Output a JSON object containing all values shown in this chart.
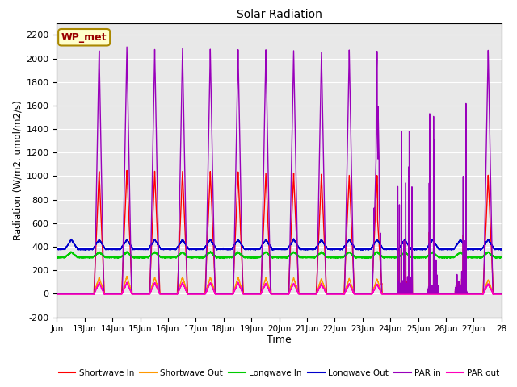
{
  "title": "Solar Radiation",
  "xlabel": "Time",
  "ylabel": "Radiation (W/m2, umol/m2/s)",
  "ylim": [
    -200,
    2300
  ],
  "yticks": [
    -200,
    0,
    200,
    400,
    600,
    800,
    1000,
    1200,
    1400,
    1600,
    1800,
    2000,
    2200
  ],
  "xtick_labels": [
    "Jun",
    "13Jun",
    "14Jun",
    "15Jun",
    "16Jun",
    "17Jun",
    "18Jun",
    "19Jun",
    "20Jun",
    "21Jun",
    "22Jun",
    "23Jun",
    "24Jun",
    "25Jun",
    "26Jun",
    "27Jun",
    "28"
  ],
  "annotation_text": "WP_met",
  "annotation_bg": "#ffffcc",
  "annotation_border": "#aa8800",
  "annotation_text_color": "#990000",
  "colors": {
    "shortwave_in": "#ff0000",
    "shortwave_out": "#ff9900",
    "longwave_in": "#00cc00",
    "longwave_out": "#0000cc",
    "par_in": "#9900bb",
    "par_out": "#ff00bb"
  },
  "legend_labels": [
    "Shortwave In",
    "Shortwave Out",
    "Longwave In",
    "Longwave Out",
    "PAR in",
    "PAR out"
  ],
  "background_color": "#e8e8e8",
  "grid_color": "#ffffff",
  "line_width": 1.0,
  "n_days": 16,
  "n_per_day": 288
}
